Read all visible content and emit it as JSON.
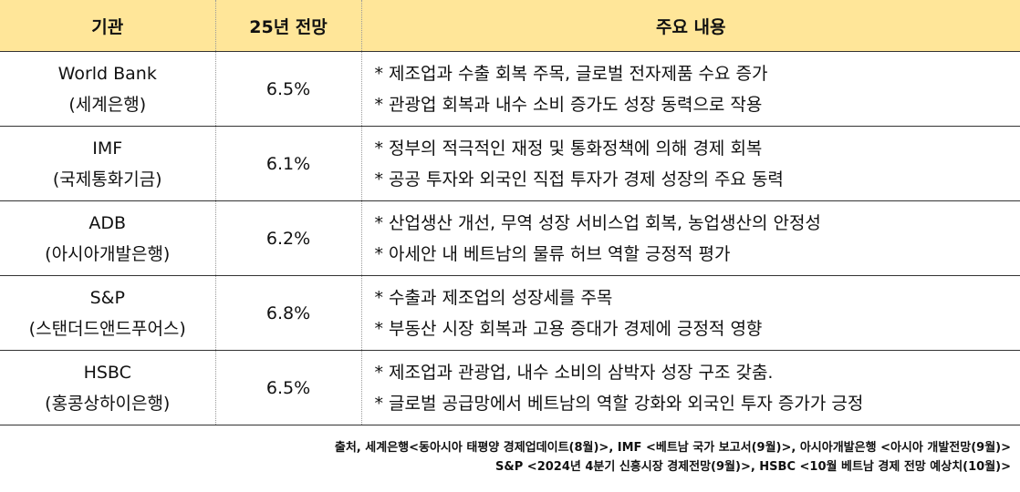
{
  "table": {
    "headers": [
      "기관",
      "25년 전망",
      "주요 내용"
    ],
    "rows": [
      {
        "org": "World Bank",
        "org_sub": "(세계은행)",
        "forecast": "6.5%",
        "lines": [
          "* 제조업과 수출 회복 주목, 글로벌 전자제품 수요 증가",
          "* 관광업 회복과 내수 소비 증가도 성장 동력으로 작용"
        ]
      },
      {
        "org": "IMF",
        "org_sub": "(국제통화기금)",
        "forecast": "6.1%",
        "lines": [
          "* 정부의 적극적인 재정 및 통화정책에 의해 경제 회복",
          "* 공공 투자와 외국인 직접 투자가 경제 성장의 주요 동력"
        ]
      },
      {
        "org": "ADB",
        "org_sub": "(아시아개발은행)",
        "forecast": "6.2%",
        "lines": [
          "* 산업생산 개선, 무역 성장 서비스업 회복, 농업생산의 안정성",
          "* 아세안 내 베트남의 물류 허브 역할 긍정적 평가"
        ]
      },
      {
        "org": "S&P",
        "org_sub": "(스탠더드앤드푸어스)",
        "forecast": "6.8%",
        "lines": [
          "* 수출과 제조업의 성장세를 주목",
          "* 부동산 시장 회복과 고용 증대가 경제에 긍정적 영향"
        ]
      },
      {
        "org": "HSBC",
        "org_sub": "(홍콩상하이은행)",
        "forecast": "6.5%",
        "lines": [
          "* 제조업과 관광업, 내수 소비의 삼박자 성장 구조 갖춤.",
          "* 글로벌 공급망에서 베트남의 역할 강화와 외국인 투자 증가가 긍정"
        ]
      }
    ]
  },
  "source": {
    "line1": "출처, 세계은행<동아시아 태평양 경제업데이트(8월)>, IMF <베트남 국가 보고서(9월)>, 아시아개발은행 <아시아 개발전망(9월)>",
    "line2": "S&P <2024년 4분기 신흥시장 경제전망(9월)>, HSBC <10월 베트남 경제 전망 예상치(10월)>"
  },
  "colors": {
    "header_bg": "#ffe699",
    "border": "#333333"
  }
}
